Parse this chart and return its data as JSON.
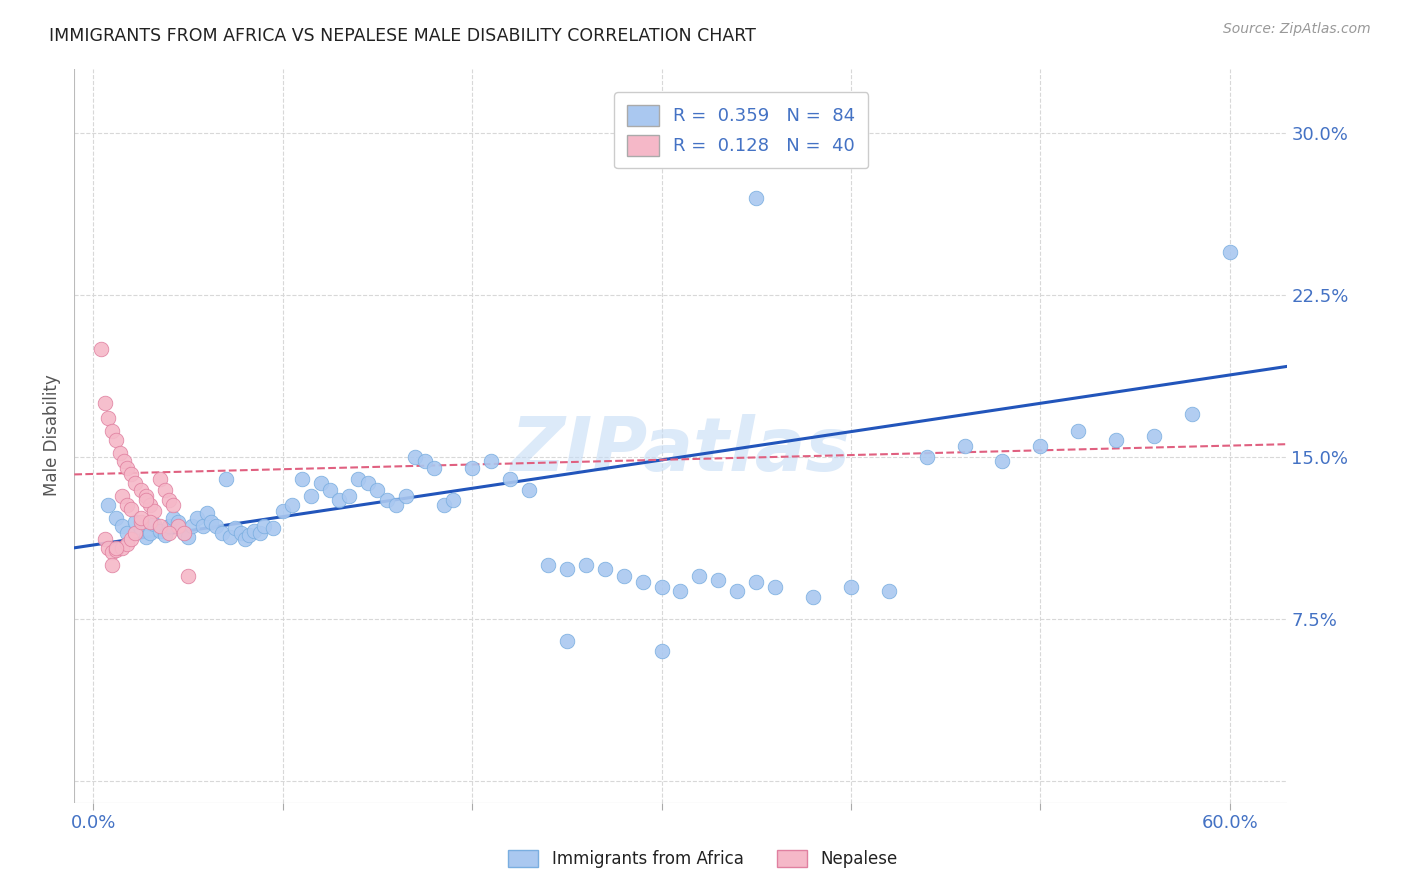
{
  "title": "IMMIGRANTS FROM AFRICA VS NEPALESE MALE DISABILITY CORRELATION CHART",
  "source": "Source: ZipAtlas.com",
  "ylabel": "Male Disability",
  "x_ticks": [
    0.0,
    0.1,
    0.2,
    0.3,
    0.4,
    0.5,
    0.6
  ],
  "y_ticks": [
    0.0,
    0.075,
    0.15,
    0.225,
    0.3
  ],
  "xlim": [
    -0.01,
    0.63
  ],
  "ylim": [
    -0.01,
    0.33
  ],
  "watermark": "ZIPatlas",
  "background_color": "#ffffff",
  "grid_color": "#d8d8d8",
  "blue_scatter_color": "#aac8f0",
  "blue_scatter_edge": "#7aaee0",
  "pink_scatter_color": "#f5b8c8",
  "pink_scatter_edge": "#e080a0",
  "blue_line_color": "#2255bb",
  "pink_line_color": "#e06080",
  "title_color": "#222222",
  "tick_label_color": "#4472c4",
  "ylabel_color": "#555555",
  "blue_scatter_x": [
    0.008,
    0.012,
    0.015,
    0.018,
    0.022,
    0.025,
    0.028,
    0.03,
    0.032,
    0.035,
    0.038,
    0.04,
    0.042,
    0.045,
    0.048,
    0.05,
    0.052,
    0.055,
    0.058,
    0.06,
    0.062,
    0.065,
    0.068,
    0.07,
    0.072,
    0.075,
    0.078,
    0.08,
    0.082,
    0.085,
    0.088,
    0.09,
    0.095,
    0.1,
    0.105,
    0.11,
    0.115,
    0.12,
    0.125,
    0.13,
    0.135,
    0.14,
    0.145,
    0.15,
    0.155,
    0.16,
    0.165,
    0.17,
    0.175,
    0.18,
    0.185,
    0.19,
    0.2,
    0.21,
    0.22,
    0.23,
    0.24,
    0.25,
    0.26,
    0.27,
    0.28,
    0.29,
    0.3,
    0.31,
    0.32,
    0.33,
    0.34,
    0.35,
    0.36,
    0.38,
    0.4,
    0.42,
    0.44,
    0.46,
    0.48,
    0.5,
    0.52,
    0.54,
    0.56,
    0.58,
    0.25,
    0.3,
    0.35,
    0.6
  ],
  "blue_scatter_y": [
    0.128,
    0.122,
    0.118,
    0.115,
    0.12,
    0.117,
    0.113,
    0.115,
    0.119,
    0.116,
    0.114,
    0.118,
    0.122,
    0.12,
    0.115,
    0.113,
    0.118,
    0.122,
    0.118,
    0.124,
    0.12,
    0.118,
    0.115,
    0.14,
    0.113,
    0.117,
    0.115,
    0.112,
    0.114,
    0.116,
    0.115,
    0.118,
    0.117,
    0.125,
    0.128,
    0.14,
    0.132,
    0.138,
    0.135,
    0.13,
    0.132,
    0.14,
    0.138,
    0.135,
    0.13,
    0.128,
    0.132,
    0.15,
    0.148,
    0.145,
    0.128,
    0.13,
    0.145,
    0.148,
    0.14,
    0.135,
    0.1,
    0.098,
    0.1,
    0.098,
    0.095,
    0.092,
    0.09,
    0.088,
    0.095,
    0.093,
    0.088,
    0.092,
    0.09,
    0.085,
    0.09,
    0.088,
    0.15,
    0.155,
    0.148,
    0.155,
    0.162,
    0.158,
    0.16,
    0.17,
    0.065,
    0.06,
    0.27,
    0.245
  ],
  "pink_scatter_x": [
    0.004,
    0.006,
    0.008,
    0.01,
    0.012,
    0.014,
    0.016,
    0.018,
    0.02,
    0.022,
    0.025,
    0.028,
    0.03,
    0.032,
    0.035,
    0.038,
    0.04,
    0.042,
    0.045,
    0.048,
    0.006,
    0.008,
    0.01,
    0.012,
    0.015,
    0.018,
    0.02,
    0.022,
    0.025,
    0.028,
    0.01,
    0.012,
    0.015,
    0.018,
    0.02,
    0.025,
    0.03,
    0.035,
    0.04,
    0.05
  ],
  "pink_scatter_y": [
    0.2,
    0.175,
    0.168,
    0.162,
    0.158,
    0.152,
    0.148,
    0.145,
    0.142,
    0.138,
    0.135,
    0.132,
    0.128,
    0.125,
    0.14,
    0.135,
    0.13,
    0.128,
    0.118,
    0.115,
    0.112,
    0.108,
    0.106,
    0.107,
    0.108,
    0.11,
    0.112,
    0.115,
    0.12,
    0.13,
    0.1,
    0.108,
    0.132,
    0.128,
    0.126,
    0.122,
    0.12,
    0.118,
    0.115,
    0.095
  ],
  "blue_trendline_x": [
    -0.01,
    0.63
  ],
  "blue_trendline_y": [
    0.108,
    0.192
  ],
  "pink_trendline_x": [
    -0.01,
    0.63
  ],
  "pink_trendline_y": [
    0.142,
    0.156
  ]
}
